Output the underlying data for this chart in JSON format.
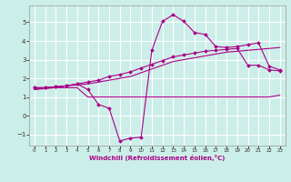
{
  "background_color": "#cceee8",
  "grid_color": "#ffffff",
  "line_color": "#aa0088",
  "xlim": [
    -0.5,
    23.5
  ],
  "ylim": [
    -1.6,
    5.9
  ],
  "xlabel": "Windchill (Refroidissement éolien,°C)",
  "xticks": [
    0,
    1,
    2,
    3,
    4,
    5,
    6,
    7,
    8,
    9,
    10,
    11,
    12,
    13,
    14,
    15,
    16,
    17,
    18,
    19,
    20,
    21,
    22,
    23
  ],
  "yticks": [
    -1,
    0,
    1,
    2,
    3,
    4,
    5
  ],
  "line_flat": {
    "x": [
      0,
      1,
      2,
      3,
      4,
      5,
      6,
      7,
      8,
      9,
      10,
      11,
      12,
      13,
      14,
      15,
      16,
      17,
      18,
      19,
      20,
      21,
      22,
      23
    ],
    "y": [
      1.4,
      1.5,
      1.5,
      1.5,
      1.5,
      1.0,
      1.0,
      1.0,
      1.0,
      1.0,
      1.0,
      1.0,
      1.0,
      1.0,
      1.0,
      1.0,
      1.0,
      1.0,
      1.0,
      1.0,
      1.0,
      1.0,
      1.0,
      1.1
    ]
  },
  "line_rising": {
    "x": [
      0,
      1,
      2,
      3,
      4,
      5,
      6,
      7,
      8,
      9,
      10,
      11,
      12,
      13,
      14,
      15,
      16,
      17,
      18,
      19,
      20,
      21,
      22,
      23
    ],
    "y": [
      1.4,
      1.45,
      1.5,
      1.6,
      1.65,
      1.7,
      1.8,
      1.9,
      2.0,
      2.1,
      2.3,
      2.5,
      2.7,
      2.9,
      3.0,
      3.1,
      3.2,
      3.3,
      3.4,
      3.45,
      3.5,
      3.55,
      3.6,
      3.65
    ]
  },
  "line_peak": {
    "x": [
      0,
      1,
      2,
      3,
      4,
      5,
      6,
      7,
      8,
      9,
      10,
      11,
      12,
      13,
      14,
      15,
      16,
      17,
      18,
      19,
      20,
      21,
      22,
      23
    ],
    "y": [
      1.5,
      1.5,
      1.55,
      1.6,
      1.7,
      1.4,
      0.6,
      0.4,
      -1.35,
      -1.2,
      -1.15,
      3.5,
      5.05,
      5.4,
      5.05,
      4.45,
      4.35,
      3.7,
      3.65,
      3.7,
      3.8,
      3.9,
      2.65,
      2.45
    ]
  },
  "line_mid": {
    "x": [
      0,
      1,
      2,
      3,
      4,
      5,
      6,
      7,
      8,
      9,
      10,
      11,
      12,
      13,
      14,
      15,
      16,
      17,
      18,
      19,
      20,
      21,
      22,
      23
    ],
    "y": [
      1.5,
      1.5,
      1.55,
      1.6,
      1.7,
      1.8,
      1.9,
      2.1,
      2.2,
      2.35,
      2.55,
      2.75,
      2.95,
      3.15,
      3.25,
      3.35,
      3.45,
      3.5,
      3.55,
      3.6,
      2.7,
      2.7,
      2.45,
      2.4
    ]
  }
}
